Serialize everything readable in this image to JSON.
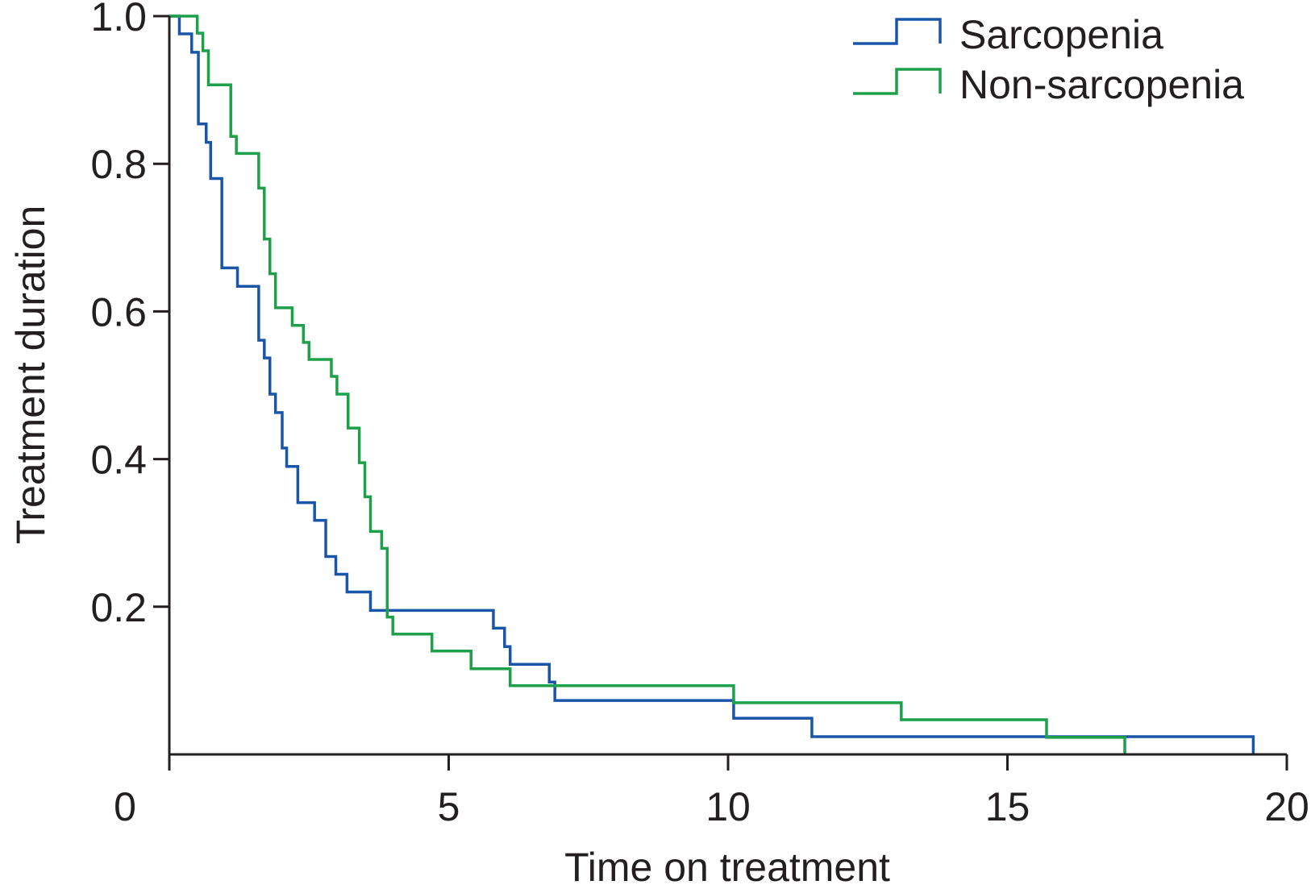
{
  "chart_data": {
    "type": "line",
    "step": true,
    "title": "",
    "xlabel": "Time on treatment",
    "ylabel": "Treatment duration",
    "xlim": [
      0,
      20
    ],
    "ylim": [
      0,
      1.0
    ],
    "x_ticks": [
      0,
      5,
      10,
      15,
      20
    ],
    "x_tick_labels": [
      "0",
      "5",
      "10",
      "15",
      "20"
    ],
    "y_ticks": [
      0.2,
      0.4,
      0.6,
      0.8,
      1.0
    ],
    "y_tick_labels": [
      "0.2",
      "0.4",
      "0.6",
      "0.8",
      "1.0"
    ],
    "grid": false,
    "legend_position": "top-right",
    "series": [
      {
        "name": "Sarcopenia",
        "color": "#1a56a8",
        "points": [
          [
            0,
            1.0
          ],
          [
            0.18,
            0.976
          ],
          [
            0.4,
            0.951
          ],
          [
            0.52,
            0.854
          ],
          [
            0.66,
            0.829
          ],
          [
            0.74,
            0.78
          ],
          [
            0.94,
            0.659
          ],
          [
            1.22,
            0.634
          ],
          [
            1.6,
            0.561
          ],
          [
            1.7,
            0.537
          ],
          [
            1.8,
            0.488
          ],
          [
            1.9,
            0.463
          ],
          [
            2.02,
            0.415
          ],
          [
            2.1,
            0.39
          ],
          [
            2.3,
            0.341
          ],
          [
            2.6,
            0.317
          ],
          [
            2.8,
            0.268
          ],
          [
            2.98,
            0.244
          ],
          [
            3.18,
            0.22
          ],
          [
            3.6,
            0.195
          ],
          [
            5.8,
            0.171
          ],
          [
            6.0,
            0.146
          ],
          [
            6.1,
            0.122
          ],
          [
            6.8,
            0.098
          ],
          [
            6.9,
            0.073
          ],
          [
            10.1,
            0.049
          ],
          [
            11.5,
            0.024
          ],
          [
            19.4,
            0.0
          ]
        ]
      },
      {
        "name": "Non-sarcopenia",
        "color": "#1ea04a",
        "points": [
          [
            0,
            1.0
          ],
          [
            0.5,
            0.977
          ],
          [
            0.6,
            0.953
          ],
          [
            0.7,
            0.907
          ],
          [
            1.1,
            0.837
          ],
          [
            1.2,
            0.814
          ],
          [
            1.6,
            0.767
          ],
          [
            1.7,
            0.698
          ],
          [
            1.8,
            0.651
          ],
          [
            1.9,
            0.605
          ],
          [
            2.2,
            0.581
          ],
          [
            2.4,
            0.558
          ],
          [
            2.5,
            0.535
          ],
          [
            2.9,
            0.512
          ],
          [
            3.0,
            0.488
          ],
          [
            3.2,
            0.442
          ],
          [
            3.4,
            0.395
          ],
          [
            3.5,
            0.349
          ],
          [
            3.6,
            0.302
          ],
          [
            3.8,
            0.279
          ],
          [
            3.9,
            0.186
          ],
          [
            4.0,
            0.163
          ],
          [
            4.7,
            0.14
          ],
          [
            5.4,
            0.116
          ],
          [
            6.1,
            0.093
          ],
          [
            10.1,
            0.07
          ],
          [
            13.1,
            0.047
          ],
          [
            15.7,
            0.023
          ],
          [
            17.1,
            0.0
          ]
        ]
      }
    ]
  }
}
